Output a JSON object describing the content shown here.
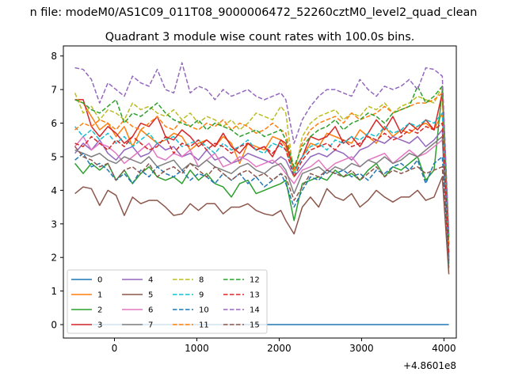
{
  "chart_data": {
    "type": "line",
    "suptitle": "n file: modeM0/AS1C09_011T08_9000006472_52260cztM0_level2_quad_clean",
    "title": "Quadrant 3 module wise count rates with 100.0s bins.",
    "xlabel": "",
    "ylabel": "",
    "x_offset_label": "+4.8601e8",
    "xlim": [
      -620,
      4150
    ],
    "ylim": [
      -0.4,
      8.3
    ],
    "xticks": [
      0,
      1000,
      2000,
      3000,
      4000
    ],
    "xtick_labels": [
      "0",
      "1000",
      "2000",
      "3000",
      "4000"
    ],
    "yticks": [
      0,
      1,
      2,
      3,
      4,
      5,
      6,
      7,
      8
    ],
    "ytick_labels": [
      "0",
      "1",
      "2",
      "3",
      "4",
      "5",
      "6",
      "7",
      "8"
    ],
    "grid": false,
    "legend_position": "lower-left",
    "x": [
      -480,
      -380,
      -280,
      -180,
      -80,
      20,
      120,
      220,
      320,
      420,
      520,
      620,
      720,
      820,
      920,
      1020,
      1120,
      1220,
      1320,
      1420,
      1520,
      1620,
      1720,
      1820,
      1920,
      2020,
      2080,
      2180,
      2280,
      2380,
      2480,
      2580,
      2680,
      2780,
      2880,
      2980,
      3080,
      3180,
      3280,
      3380,
      3480,
      3580,
      3680,
      3780,
      3880,
      3980,
      4060
    ],
    "series": [
      {
        "name": "0",
        "color": "#1f77b4",
        "dash": "solid",
        "values": [
          0,
          0,
          0,
          0,
          0,
          0,
          0,
          0,
          0,
          0,
          0,
          0,
          0,
          0,
          0,
          0,
          0,
          0,
          0,
          0,
          0,
          0,
          0,
          0,
          0,
          0,
          0,
          0,
          0,
          0,
          0,
          0,
          0,
          0,
          0,
          0,
          0,
          0,
          0,
          0,
          0,
          0,
          0,
          0,
          0,
          0,
          0
        ]
      },
      {
        "name": "1",
        "color": "#ff7f0e",
        "dash": "solid",
        "values": [
          6.7,
          6.6,
          6.2,
          5.8,
          6.0,
          5.6,
          5.9,
          5.3,
          5.8,
          5.6,
          5.4,
          5.5,
          5.7,
          5.6,
          5.2,
          5.4,
          5.5,
          5.3,
          5.6,
          5.4,
          4.8,
          5.4,
          5.3,
          5.2,
          5.6,
          5.5,
          5.3,
          4.6,
          5.0,
          5.4,
          5.3,
          5.7,
          5.6,
          5.5,
          5.4,
          5.8,
          5.6,
          5.4,
          5.9,
          5.6,
          5.8,
          5.7,
          5.9,
          6.0,
          5.8,
          6.3,
          2.4
        ]
      },
      {
        "name": "2",
        "color": "#2ca02c",
        "dash": "solid",
        "values": [
          4.8,
          4.5,
          4.8,
          4.6,
          4.8,
          4.3,
          4.6,
          4.2,
          4.5,
          4.7,
          4.4,
          4.3,
          4.4,
          4.2,
          4.6,
          4.3,
          4.5,
          4.2,
          4.1,
          3.8,
          4.2,
          4.3,
          3.9,
          4.0,
          4.1,
          4.2,
          4.3,
          3.1,
          4.2,
          4.3,
          4.4,
          4.3,
          4.6,
          4.4,
          4.5,
          4.3,
          4.6,
          4.8,
          4.4,
          4.7,
          4.6,
          4.8,
          5.0,
          4.3,
          4.6,
          7.0,
          1.8
        ]
      },
      {
        "name": "3",
        "color": "#d62728",
        "dash": "solid",
        "values": [
          6.7,
          6.7,
          5.9,
          5.6,
          5.9,
          5.7,
          5.4,
          5.6,
          6.0,
          5.9,
          6.2,
          5.6,
          5.5,
          5.8,
          5.6,
          5.3,
          5.5,
          5.3,
          5.7,
          5.3,
          5.1,
          5.4,
          5.2,
          5.3,
          5.0,
          5.5,
          5.4,
          4.6,
          5.0,
          5.6,
          5.5,
          5.6,
          5.9,
          5.4,
          5.6,
          5.3,
          5.7,
          6.1,
          5.8,
          6.2,
          5.7,
          6.0,
          5.8,
          6.1,
          5.8,
          6.9,
          2.0
        ]
      },
      {
        "name": "4",
        "color": "#9467bd",
        "dash": "solid",
        "values": [
          5.1,
          5.4,
          5.2,
          5.5,
          5.1,
          4.9,
          5.2,
          5.3,
          5.0,
          5.1,
          5.4,
          5.2,
          5.3,
          5.0,
          5.1,
          4.9,
          5.2,
          4.9,
          5.0,
          4.8,
          4.9,
          5.1,
          5.0,
          4.9,
          4.8,
          5.0,
          4.9,
          4.4,
          4.7,
          5.0,
          5.1,
          5.0,
          5.2,
          5.1,
          4.9,
          5.2,
          5.3,
          5.5,
          5.4,
          5.6,
          5.5,
          5.4,
          5.6,
          5.3,
          5.5,
          5.8,
          1.9
        ]
      },
      {
        "name": "5",
        "color": "#8c564b",
        "dash": "solid",
        "values": [
          3.9,
          4.1,
          4.05,
          3.55,
          4.0,
          3.85,
          3.25,
          3.8,
          3.6,
          3.7,
          3.7,
          3.5,
          3.25,
          3.3,
          3.6,
          3.4,
          3.6,
          3.6,
          3.3,
          3.5,
          3.5,
          3.6,
          3.4,
          3.3,
          3.25,
          3.4,
          3.1,
          2.7,
          3.5,
          3.8,
          3.5,
          4.05,
          3.8,
          3.7,
          3.9,
          3.5,
          3.7,
          4.0,
          3.8,
          3.65,
          3.8,
          3.8,
          4.0,
          3.7,
          3.8,
          4.4,
          1.5
        ]
      },
      {
        "name": "6",
        "color": "#e377c2",
        "dash": "solid",
        "values": [
          5.3,
          5.6,
          5.2,
          5.4,
          5.3,
          5.1,
          4.8,
          5.0,
          5.2,
          5.4,
          5.0,
          4.9,
          5.1,
          5.0,
          5.2,
          4.7,
          4.9,
          5.1,
          4.7,
          4.8,
          5.0,
          4.9,
          4.7,
          4.8,
          4.9,
          4.7,
          4.5,
          4.2,
          4.6,
          4.7,
          4.9,
          4.6,
          4.8,
          4.9,
          5.0,
          4.7,
          4.9,
          5.0,
          5.1,
          4.8,
          5.0,
          5.2,
          5.0,
          5.1,
          5.3,
          5.5,
          2.1
        ]
      },
      {
        "name": "7",
        "color": "#7f7f7f",
        "dash": "solid",
        "values": [
          5.2,
          5.1,
          5.0,
          5.1,
          4.9,
          4.8,
          5.0,
          4.9,
          4.8,
          5.0,
          4.7,
          4.8,
          4.9,
          4.6,
          4.8,
          4.7,
          4.9,
          4.7,
          4.6,
          4.5,
          4.7,
          4.8,
          4.6,
          4.5,
          4.7,
          4.8,
          4.6,
          3.9,
          4.5,
          4.6,
          4.7,
          4.5,
          4.7,
          4.6,
          4.8,
          4.7,
          4.9,
          4.8,
          5.0,
          4.8,
          4.9,
          5.1,
          5.0,
          5.2,
          5.4,
          5.6,
          1.9
        ]
      },
      {
        "name": "8",
        "color": "#bcbd22",
        "dash": "dashed",
        "values": [
          6.9,
          6.3,
          6.5,
          6.1,
          6.4,
          6.3,
          6.1,
          6.6,
          6.4,
          6.5,
          6.3,
          6.2,
          6.4,
          6.1,
          6.3,
          6.0,
          6.2,
          6.1,
          5.9,
          6.1,
          5.8,
          6.0,
          6.3,
          6.2,
          6.1,
          6.5,
          6.3,
          4.4,
          5.6,
          6.0,
          6.2,
          6.3,
          6.4,
          6.1,
          6.3,
          6.2,
          6.5,
          6.4,
          6.6,
          6.3,
          6.5,
          6.6,
          6.8,
          6.7,
          6.6,
          7.1,
          2.4
        ]
      },
      {
        "name": "9",
        "color": "#17becf",
        "dash": "dashed",
        "values": [
          5.9,
          5.6,
          5.8,
          5.5,
          5.7,
          5.4,
          5.6,
          5.3,
          5.5,
          5.7,
          5.4,
          5.5,
          5.6,
          5.3,
          5.4,
          5.5,
          5.3,
          5.1,
          5.4,
          5.2,
          5.3,
          5.5,
          5.2,
          5.1,
          5.4,
          5.3,
          5.2,
          4.5,
          5.0,
          5.3,
          5.4,
          5.2,
          5.5,
          5.4,
          5.6,
          5.5,
          5.7,
          5.6,
          5.9,
          5.7,
          5.8,
          6.0,
          5.9,
          6.1,
          6.0,
          6.3,
          2.2
        ]
      },
      {
        "name": "10",
        "color": "#1f77b4",
        "dash": "dashed",
        "values": [
          4.9,
          5.1,
          4.7,
          4.8,
          4.6,
          4.3,
          4.5,
          4.2,
          4.6,
          4.4,
          4.7,
          4.5,
          4.4,
          4.6,
          4.3,
          4.5,
          4.4,
          4.2,
          4.5,
          4.3,
          4.5,
          4.2,
          4.4,
          4.1,
          4.3,
          4.5,
          4.2,
          3.5,
          4.0,
          4.4,
          4.3,
          4.6,
          4.5,
          4.6,
          4.4,
          4.5,
          4.3,
          4.6,
          4.5,
          4.7,
          4.8,
          4.6,
          4.9,
          4.2,
          4.8,
          5.0,
          1.7
        ]
      },
      {
        "name": "11",
        "color": "#ff7f0e",
        "dash": "dashed",
        "values": [
          5.8,
          6.0,
          5.9,
          6.1,
          6.0,
          5.8,
          6.1,
          5.9,
          5.8,
          6.0,
          6.2,
          5.9,
          5.8,
          6.1,
          5.9,
          5.8,
          6.0,
          5.9,
          6.1,
          5.8,
          6.0,
          5.9,
          5.7,
          5.8,
          6.0,
          5.8,
          5.7,
          4.6,
          5.4,
          5.8,
          6.0,
          6.1,
          6.2,
          6.0,
          6.3,
          6.1,
          6.2,
          6.3,
          6.5,
          6.3,
          6.4,
          6.5,
          6.6,
          6.6,
          6.7,
          6.9,
          2.3
        ]
      },
      {
        "name": "12",
        "color": "#2ca02c",
        "dash": "dashed",
        "values": [
          6.7,
          6.6,
          6.4,
          6.3,
          6.5,
          6.7,
          6.0,
          6.3,
          6.2,
          6.4,
          6.6,
          6.3,
          6.1,
          6.0,
          5.9,
          6.1,
          5.8,
          6.0,
          5.9,
          5.8,
          5.6,
          5.7,
          5.8,
          5.6,
          5.7,
          5.8,
          5.5,
          4.7,
          5.3,
          5.6,
          5.8,
          5.9,
          6.1,
          5.8,
          6.0,
          6.1,
          6.3,
          6.2,
          6.0,
          6.3,
          6.4,
          6.5,
          7.1,
          6.6,
          6.8,
          7.1,
          2.6
        ]
      },
      {
        "name": "13",
        "color": "#d62728",
        "dash": "dashed",
        "values": [
          5.4,
          5.3,
          5.6,
          5.4,
          5.2,
          5.5,
          5.3,
          5.6,
          5.4,
          5.2,
          5.3,
          5.6,
          5.1,
          5.4,
          5.3,
          5.5,
          5.2,
          5.4,
          5.3,
          5.1,
          5.3,
          5.4,
          5.2,
          5.3,
          5.1,
          5.4,
          5.2,
          4.4,
          4.9,
          5.2,
          5.3,
          5.4,
          5.2,
          5.5,
          5.3,
          5.4,
          5.6,
          5.5,
          5.7,
          5.5,
          5.6,
          5.8,
          5.7,
          5.9,
          5.8,
          6.0,
          2.1
        ]
      },
      {
        "name": "14",
        "color": "#9467bd",
        "dash": "dashed",
        "values": [
          7.65,
          7.6,
          7.3,
          6.6,
          7.2,
          7.0,
          6.8,
          7.4,
          7.2,
          7.1,
          7.6,
          7.0,
          6.9,
          7.8,
          6.9,
          7.1,
          7.0,
          6.7,
          7.0,
          6.8,
          6.9,
          7.0,
          6.8,
          6.7,
          6.8,
          6.9,
          6.7,
          5.4,
          6.1,
          6.5,
          6.8,
          7.0,
          7.0,
          6.9,
          6.8,
          7.3,
          7.0,
          6.8,
          7.1,
          7.0,
          7.1,
          7.3,
          7.0,
          7.65,
          7.6,
          7.4,
          2.7
        ]
      },
      {
        "name": "15",
        "color": "#8c564b",
        "dash": "dashed",
        "values": [
          5.3,
          5.0,
          4.9,
          4.7,
          4.8,
          4.3,
          4.6,
          4.7,
          4.5,
          4.8,
          4.4,
          4.6,
          4.7,
          4.5,
          4.8,
          4.6,
          4.4,
          4.7,
          4.5,
          4.3,
          4.5,
          4.6,
          4.4,
          4.5,
          4.3,
          4.5,
          4.4,
          3.7,
          4.1,
          4.5,
          4.4,
          4.6,
          4.5,
          4.4,
          4.6,
          4.3,
          4.5,
          4.7,
          4.4,
          4.6,
          4.5,
          4.6,
          4.7,
          4.5,
          4.6,
          4.7,
          1.6
        ]
      }
    ]
  }
}
